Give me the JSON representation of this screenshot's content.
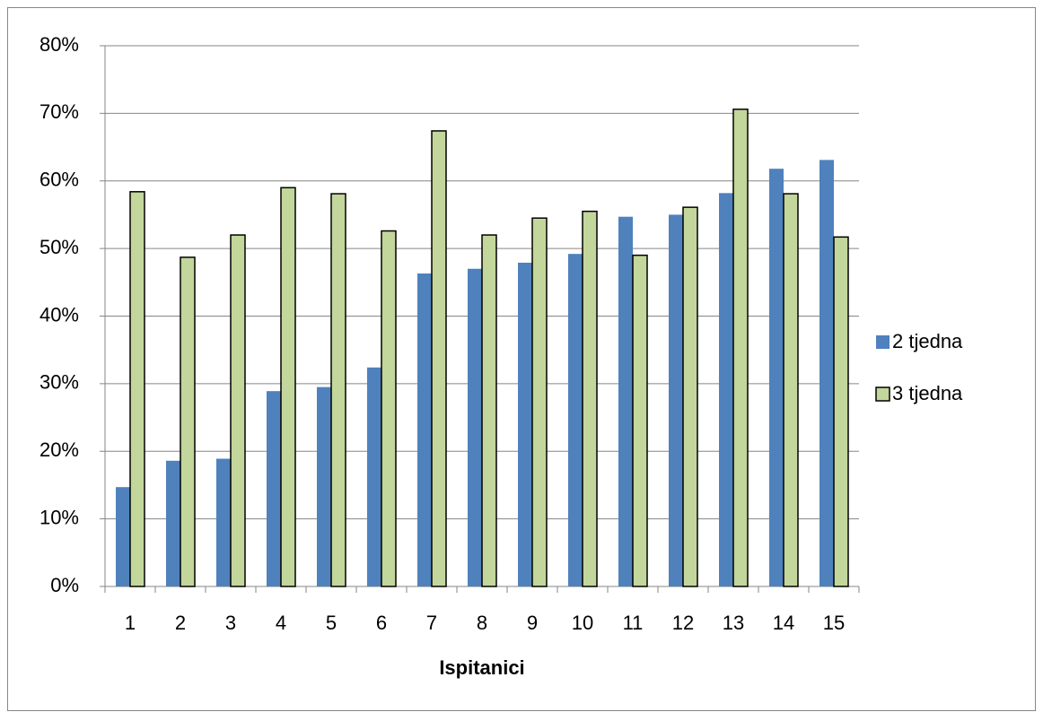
{
  "chart_data": {
    "type": "bar",
    "x_label": "Ispitanici",
    "categories": [
      "1",
      "2",
      "3",
      "4",
      "5",
      "6",
      "7",
      "8",
      "9",
      "10",
      "11",
      "12",
      "13",
      "14",
      "15"
    ],
    "series": [
      {
        "name": "2 tjedna",
        "color": "#4f81bd",
        "values": [
          14.7,
          18.6,
          18.9,
          28.9,
          29.5,
          32.4,
          46.3,
          47.0,
          47.9,
          49.2,
          54.7,
          55.0,
          58.2,
          61.8,
          63.1
        ]
      },
      {
        "name": "3 tjedna",
        "color": "#c3d69b",
        "values": [
          58.4,
          48.7,
          52.0,
          59.0,
          58.1,
          52.6,
          67.4,
          52.0,
          54.5,
          55.5,
          49.0,
          56.1,
          70.6,
          58.1,
          51.7
        ]
      }
    ],
    "ylim": [
      0,
      80
    ],
    "yticks": [
      {
        "value": 0,
        "label": "0%"
      },
      {
        "value": 10,
        "label": "10%"
      },
      {
        "value": 20,
        "label": "20%"
      },
      {
        "value": 30,
        "label": "30%"
      },
      {
        "value": 40,
        "label": "40%"
      },
      {
        "value": 50,
        "label": "50%"
      },
      {
        "value": 60,
        "label": "60%"
      },
      {
        "value": 70,
        "label": "70%"
      },
      {
        "value": 80,
        "label": "80%"
      }
    ],
    "grid": true,
    "legend": "right"
  }
}
